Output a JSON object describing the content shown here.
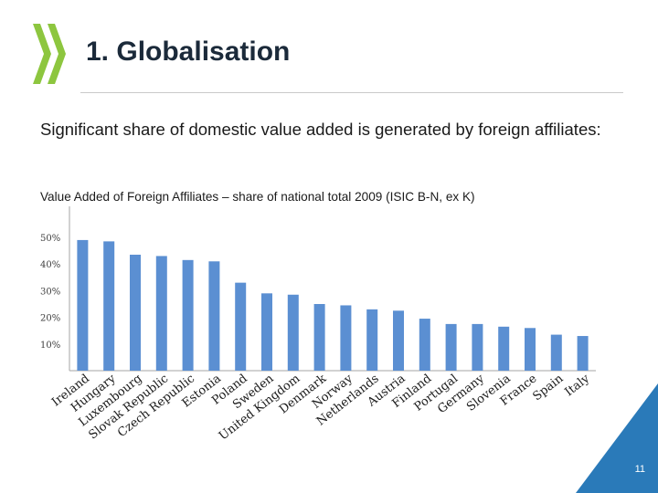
{
  "slide": {
    "title": "1. Globalisation",
    "subtitle": "Significant share of domestic value added is generated by foreign affiliates:",
    "page_number": "11"
  },
  "colors": {
    "bar": "#5b8fd2",
    "accent": "#2a7ab9",
    "logo": "#8dc63f"
  },
  "icons": {
    "logo": "oecd-chevron-logo"
  },
  "chart_data": {
    "type": "bar",
    "title": "Value Added of Foreign Affiliates – share of national total 2009 (ISIC B-N, ex K)",
    "xlabel": "",
    "ylabel": "",
    "ylim": [
      0,
      55
    ],
    "yticks": [
      10,
      20,
      30,
      40,
      50
    ],
    "ytick_labels": [
      "10%",
      "20%",
      "30%",
      "40%",
      "50%"
    ],
    "grid": false,
    "legend": "none",
    "categories": [
      "Ireland",
      "Hungary",
      "Luxembourg",
      "Slovak Republic",
      "Czech Republic",
      "Estonia",
      "Poland",
      "Sweden",
      "United Kingdom",
      "Denmark",
      "Norway",
      "Netherlands",
      "Austria",
      "Finland",
      "Portugal",
      "Germany",
      "Slovenia",
      "France",
      "Spain",
      "Italy"
    ],
    "values": [
      49,
      48.5,
      43.5,
      43,
      41.5,
      41,
      33,
      29,
      28.5,
      25,
      24.5,
      23,
      22.5,
      19.5,
      17.5,
      17.5,
      16.5,
      16,
      13.5,
      13
    ]
  }
}
